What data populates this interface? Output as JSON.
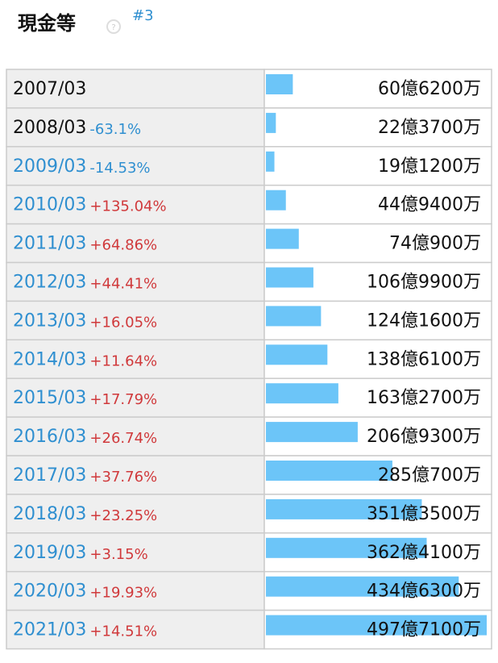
{
  "header": {
    "title": "現金等",
    "tag": "#3"
  },
  "chart_data": {
    "type": "bar",
    "categories": [
      "2007/03",
      "2008/03",
      "2009/03",
      "2010/03",
      "2011/03",
      "2012/03",
      "2013/03",
      "2014/03",
      "2015/03",
      "2016/03",
      "2017/03",
      "2018/03",
      "2019/03",
      "2020/03",
      "2021/03"
    ],
    "category_links": [
      false,
      false,
      true,
      true,
      true,
      true,
      true,
      true,
      true,
      true,
      true,
      true,
      true,
      true,
      true
    ],
    "changes": [
      null,
      -63.1,
      -14.53,
      135.04,
      64.86,
      44.41,
      16.05,
      11.64,
      17.79,
      26.74,
      37.76,
      23.25,
      3.15,
      19.93,
      14.51
    ],
    "change_labels": [
      null,
      "-63.1%",
      "-14.53%",
      "+135.04%",
      "+64.86%",
      "+44.41%",
      "+16.05%",
      "+11.64%",
      "+17.79%",
      "+26.74%",
      "+37.76%",
      "+23.25%",
      "+3.15%",
      "+19.93%",
      "+14.51%"
    ],
    "values": [
      6062000000,
      2237000000,
      1912000000,
      4494000000,
      7409000000,
      10699000000,
      12416000000,
      13861000000,
      16327000000,
      20693000000,
      28507000000,
      35135000000,
      36241000000,
      43463000000,
      49771000000
    ],
    "value_labels": [
      "60億6200万",
      "22億3700万",
      "19億1200万",
      "44億9400万",
      "74億900万",
      "106億9900万",
      "124億1600万",
      "138億6100万",
      "163億2700万",
      "206億9300万",
      "285億700万",
      "351億3500万",
      "362億4100万",
      "434億6300万",
      "497億7100万"
    ],
    "color": "#6cc5f8",
    "positive_color": "#d0393b",
    "negative_color": "#2f8fd0",
    "link_color": "#2f8fd0"
  }
}
